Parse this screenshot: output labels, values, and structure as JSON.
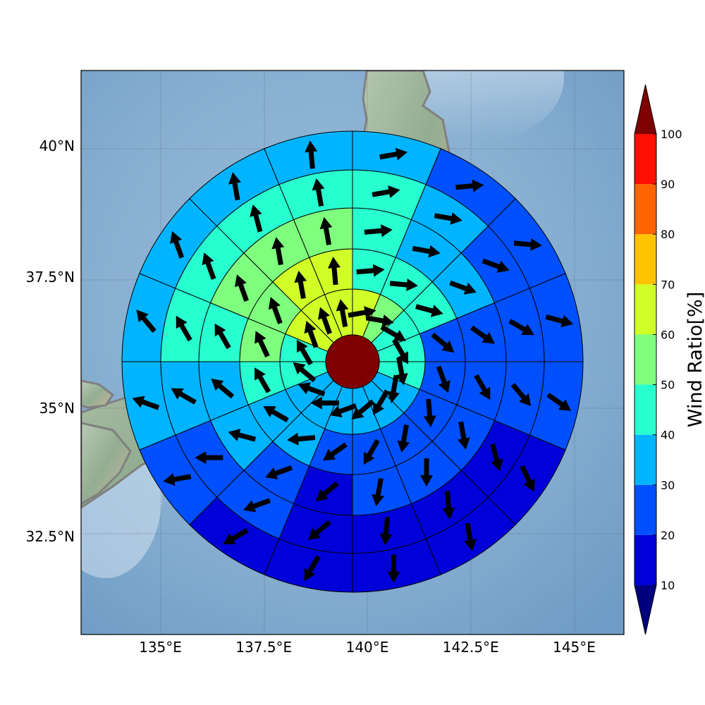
{
  "map": {
    "lon_ticks": [
      {
        "value": 135,
        "label": "135°E"
      },
      {
        "value": 137.5,
        "label": "137.5°E"
      },
      {
        "value": 140,
        "label": "140°E"
      },
      {
        "value": 142.5,
        "label": "142.5°E"
      },
      {
        "value": 145,
        "label": "145°E"
      }
    ],
    "lat_ticks": [
      {
        "value": 40,
        "label": "40°N"
      },
      {
        "value": 37.5,
        "label": "37.5°N"
      },
      {
        "value": 35,
        "label": "35°N"
      },
      {
        "value": 32.5,
        "label": "32.5°N"
      }
    ],
    "center": {
      "lon": 139.75,
      "lat": 35.9
    },
    "background": "shaded-relief",
    "coastline_color": "#808080",
    "gridlines": "dotted"
  },
  "colorbar": {
    "title": "Wind Ratio[%]",
    "ticks": [
      "10",
      "20",
      "30",
      "40",
      "50",
      "60",
      "70",
      "80",
      "90",
      "100"
    ],
    "colors": [
      "#0000d8",
      "#0050ff",
      "#00b4ff",
      "#28ffd0",
      "#7eff7e",
      "#d0ff28",
      "#ffc400",
      "#ff6400",
      "#ff1000"
    ],
    "under_color": "#00007f",
    "over_color": "#7f0000",
    "extend": "both"
  },
  "rose": {
    "sectors": 16,
    "center_value": 100,
    "rings": [
      {
        "values": [
          65,
          52,
          45,
          42,
          41,
          37,
          32,
          33,
          35,
          35,
          37,
          40,
          43,
          62,
          62,
          64
        ],
        "dirs": [
          80,
          100,
          120,
          150,
          170,
          190,
          210,
          230,
          250,
          270,
          290,
          310,
          330,
          340,
          340,
          350
        ]
      },
      {
        "values": [
          46,
          44,
          42,
          21,
          28,
          23,
          25,
          24,
          21,
          33,
          35,
          48,
          52,
          57,
          62,
          64
        ],
        "dirs": [
          85,
          95,
          105,
          130,
          160,
          175,
          190,
          210,
          235,
          265,
          300,
          330,
          335,
          340,
          350,
          355
        ]
      },
      {
        "values": [
          44,
          37,
          35,
          23,
          23,
          21,
          22,
          20,
          16,
          25,
          31,
          38,
          47,
          52,
          54,
          57
        ],
        "dirs": [
          85,
          100,
          110,
          125,
          150,
          170,
          180,
          190,
          230,
          250,
          285,
          310,
          330,
          340,
          350,
          350
        ]
      },
      {
        "values": [
          40,
          34,
          28,
          28,
          28,
          18,
          17,
          17,
          16,
          23,
          27,
          34,
          41,
          41,
          45,
          40
        ],
        "dirs": [
          80,
          100,
          110,
          120,
          140,
          165,
          175,
          185,
          230,
          250,
          270,
          300,
          330,
          340,
          345,
          350
        ]
      },
      {
        "values": [
          33,
          22,
          24,
          26,
          21,
          14,
          13,
          13,
          14,
          18,
          21,
          31,
          33,
          34,
          36,
          34
        ],
        "dirs": [
          80,
          85,
          95,
          105,
          125,
          155,
          170,
          180,
          210,
          240,
          260,
          290,
          320,
          340,
          350,
          355
        ]
      }
    ]
  }
}
